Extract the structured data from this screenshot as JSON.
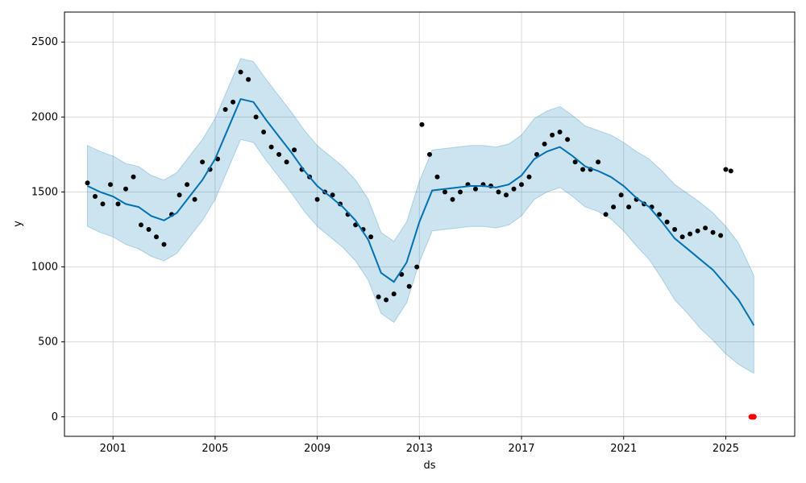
{
  "chart_data": {
    "type": "line",
    "title": "",
    "xlabel": "ds",
    "ylabel": "y",
    "x_ticks": [
      "2001",
      "2005",
      "2009",
      "2013",
      "2017",
      "2021",
      "2025"
    ],
    "y_ticks": [
      0,
      500,
      1000,
      1500,
      2000,
      2500
    ],
    "xlim": [
      1999.1,
      2027.7
    ],
    "ylim": [
      -130,
      2700
    ],
    "grid": true,
    "legend": "none",
    "colors": {
      "forecast_line": "#0072B2",
      "uncertainty_band": "#0072B2",
      "observed_points": "#000000",
      "highlight_points": "#FF0000"
    },
    "series": [
      {
        "kind": "forecast",
        "x": [
          2000.0,
          2000.5,
          2001.0,
          2001.5,
          2002.0,
          2002.5,
          2003.0,
          2003.5,
          2004.0,
          2004.5,
          2005.0,
          2005.5,
          2006.0,
          2006.5,
          2007.0,
          2007.5,
          2008.0,
          2008.5,
          2009.0,
          2009.5,
          2010.0,
          2010.5,
          2011.0,
          2011.5,
          2012.0,
          2012.5,
          2013.0,
          2013.5,
          2014.0,
          2014.5,
          2015.0,
          2015.5,
          2016.0,
          2016.5,
          2017.0,
          2017.5,
          2018.0,
          2018.5,
          2019.0,
          2019.5,
          2020.0,
          2020.5,
          2021.0,
          2021.5,
          2022.0,
          2022.5,
          2023.0,
          2023.5,
          2024.0,
          2024.5,
          2025.0,
          2025.5,
          2026.0,
          2026.1
        ],
        "y": [
          1540,
          1500,
          1470,
          1420,
          1400,
          1340,
          1310,
          1360,
          1470,
          1580,
          1720,
          1920,
          2120,
          2100,
          1980,
          1870,
          1760,
          1640,
          1540,
          1470,
          1400,
          1310,
          1180,
          960,
          900,
          1030,
          1300,
          1510,
          1520,
          1530,
          1540,
          1540,
          1530,
          1550,
          1610,
          1720,
          1770,
          1800,
          1740,
          1670,
          1640,
          1600,
          1540,
          1460,
          1400,
          1300,
          1190,
          1120,
          1050,
          980,
          880,
          780,
          640,
          610
        ],
        "lower": [
          1270,
          1230,
          1200,
          1150,
          1120,
          1070,
          1040,
          1090,
          1200,
          1310,
          1450,
          1650,
          1850,
          1830,
          1710,
          1600,
          1490,
          1370,
          1270,
          1200,
          1130,
          1040,
          910,
          690,
          630,
          760,
          1030,
          1240,
          1250,
          1260,
          1270,
          1270,
          1260,
          1280,
          1340,
          1450,
          1500,
          1530,
          1470,
          1400,
          1370,
          1320,
          1240,
          1140,
          1050,
          920,
          780,
          690,
          590,
          510,
          420,
          350,
          300,
          290
        ],
        "upper": [
          1810,
          1770,
          1740,
          1690,
          1670,
          1610,
          1580,
          1630,
          1740,
          1850,
          1990,
          2190,
          2390,
          2370,
          2250,
          2140,
          2030,
          1910,
          1810,
          1740,
          1670,
          1580,
          1450,
          1230,
          1170,
          1300,
          1570,
          1780,
          1790,
          1800,
          1810,
          1810,
          1800,
          1820,
          1880,
          1990,
          2040,
          2070,
          2010,
          1940,
          1910,
          1880,
          1830,
          1770,
          1720,
          1640,
          1550,
          1490,
          1430,
          1360,
          1270,
          1160,
          980,
          940
        ]
      },
      {
        "kind": "observed",
        "x": [
          2000.0,
          2000.3,
          2000.6,
          2000.9,
          2001.2,
          2001.5,
          2001.8,
          2002.1,
          2002.4,
          2002.7,
          2003.0,
          2003.3,
          2003.6,
          2003.9,
          2004.2,
          2004.5,
          2004.8,
          2005.1,
          2005.4,
          2005.7,
          2006.0,
          2006.3,
          2006.6,
          2006.9,
          2007.2,
          2007.5,
          2007.8,
          2008.1,
          2008.4,
          2008.7,
          2009.0,
          2009.3,
          2009.6,
          2009.9,
          2010.2,
          2010.5,
          2010.8,
          2011.1,
          2011.4,
          2011.7,
          2012.0,
          2012.3,
          2012.6,
          2012.9,
          2013.1,
          2013.4,
          2013.7,
          2014.0,
          2014.3,
          2014.6,
          2014.9,
          2015.2,
          2015.5,
          2015.8,
          2016.1,
          2016.4,
          2016.7,
          2017.0,
          2017.3,
          2017.6,
          2017.9,
          2018.2,
          2018.5,
          2018.8,
          2019.1,
          2019.4,
          2019.7,
          2020.0,
          2020.3,
          2020.6,
          2020.9,
          2021.2,
          2021.5,
          2021.8,
          2022.1,
          2022.4,
          2022.7,
          2023.0,
          2023.3,
          2023.6,
          2023.9,
          2024.2,
          2024.5,
          2024.8,
          2025.0,
          2025.2
        ],
        "y": [
          1560,
          1470,
          1420,
          1550,
          1420,
          1520,
          1600,
          1280,
          1250,
          1200,
          1150,
          1350,
          1480,
          1550,
          1450,
          1700,
          1650,
          1720,
          2050,
          2100,
          2300,
          2250,
          2000,
          1900,
          1800,
          1750,
          1700,
          1780,
          1650,
          1600,
          1450,
          1500,
          1480,
          1420,
          1350,
          1280,
          1250,
          1200,
          800,
          780,
          820,
          950,
          870,
          1000,
          1950,
          1750,
          1600,
          1500,
          1450,
          1500,
          1550,
          1520,
          1550,
          1540,
          1500,
          1480,
          1520,
          1550,
          1600,
          1750,
          1820,
          1880,
          1900,
          1850,
          1700,
          1650,
          1650,
          1700,
          1350,
          1400,
          1480,
          1400,
          1450,
          1420,
          1400,
          1350,
          1300,
          1250,
          1200,
          1220,
          1240,
          1260,
          1230,
          1210,
          1650,
          1640
        ]
      },
      {
        "kind": "highlight",
        "x": [
          2026.0,
          2026.05,
          2026.1
        ],
        "y": [
          0,
          0,
          0
        ]
      }
    ]
  }
}
